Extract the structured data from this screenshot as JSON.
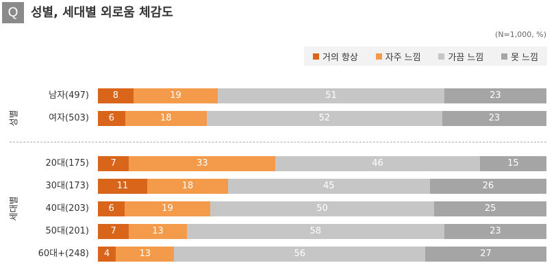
{
  "question_mark": "Q",
  "title": "성별, 세대별 외로움 체감도",
  "note": "(N=1,000, %)",
  "colors": {
    "always": "#d9651a",
    "often": "#f39b4b",
    "sometimes": "#c6c6c6",
    "never": "#a5a5a5"
  },
  "chart_data": {
    "type": "bar",
    "stacked": true,
    "orientation": "horizontal",
    "title": "성별, 세대별 외로움 체감도",
    "note": "(N=1,000, %)",
    "legend_position": "top-right",
    "xlim": [
      0,
      100
    ],
    "groups": [
      {
        "name": "성별",
        "categories": [
          "남자(497)",
          "여자(503)"
        ]
      },
      {
        "name": "세대별",
        "categories": [
          "20대(175)",
          "30대(173)",
          "40대(203)",
          "50대(201)",
          "60대+(248)"
        ]
      }
    ],
    "categories": [
      "남자(497)",
      "여자(503)",
      "20대(175)",
      "30대(173)",
      "40대(203)",
      "50대(201)",
      "60대+(248)"
    ],
    "series": [
      {
        "name": "거의 항상",
        "values": [
          8,
          6,
          7,
          11,
          6,
          7,
          4
        ]
      },
      {
        "name": "자주 느낌",
        "values": [
          19,
          18,
          33,
          18,
          19,
          13,
          13
        ]
      },
      {
        "name": "가끔 느낌",
        "values": [
          51,
          52,
          46,
          45,
          50,
          58,
          56
        ]
      },
      {
        "name": "못 느낌",
        "values": [
          23,
          23,
          15,
          26,
          25,
          23,
          27
        ]
      }
    ]
  }
}
